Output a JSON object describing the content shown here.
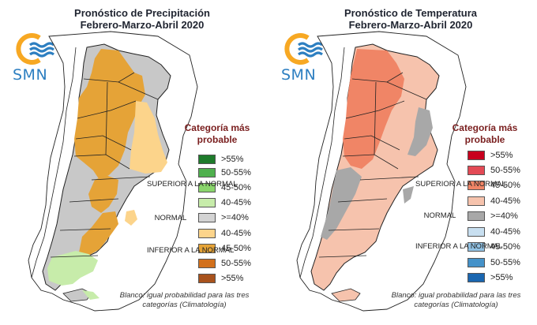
{
  "colors": {
    "logo_orange": "#f7a823",
    "logo_blue": "#2d7fc1",
    "gray": "#c8c8c8",
    "land_white": "#ffffff",
    "outline": "#222222",
    "precip_scale": [
      "#1e7b2b",
      "#4fb04e",
      "#8ad56c",
      "#c7ecaa",
      "#d3d3d3",
      "#fcd48b",
      "#e5a337",
      "#d2701c",
      "#a8521c"
    ],
    "temp_scale": [
      "#c8001e",
      "#e34a55",
      "#f08566",
      "#f6c3ad",
      "#a8a8a8",
      "#c8dff0",
      "#90c1e3",
      "#4592c9",
      "#1a66b0"
    ]
  },
  "logo": {
    "text": "SMN"
  },
  "legend_title": "Categoría más probable",
  "legend_groups": {
    "superior": "SUPERIOR A LA NORMAL",
    "normal": "NORMAL",
    "inferior": "INFERIOR A LA NORMAL"
  },
  "legend_labels": [
    ">55%",
    "50-55%",
    "45-50%",
    "40-45%",
    ">=40%",
    "40-45%",
    "45-50%",
    "50-55%",
    ">55%"
  ],
  "footnote": "Blanco: igual probabilidad para las tres categorías (Climatología)",
  "maps": [
    {
      "id": "precipitation",
      "title_line1": "Pronóstico de Precipitación",
      "title_line2": "Febrero-Marzo-Abril 2020"
    },
    {
      "id": "temperature",
      "title_line1": "Pronóstico de Temperatura",
      "title_line2": "Febrero-Marzo-Abril 2020"
    }
  ]
}
